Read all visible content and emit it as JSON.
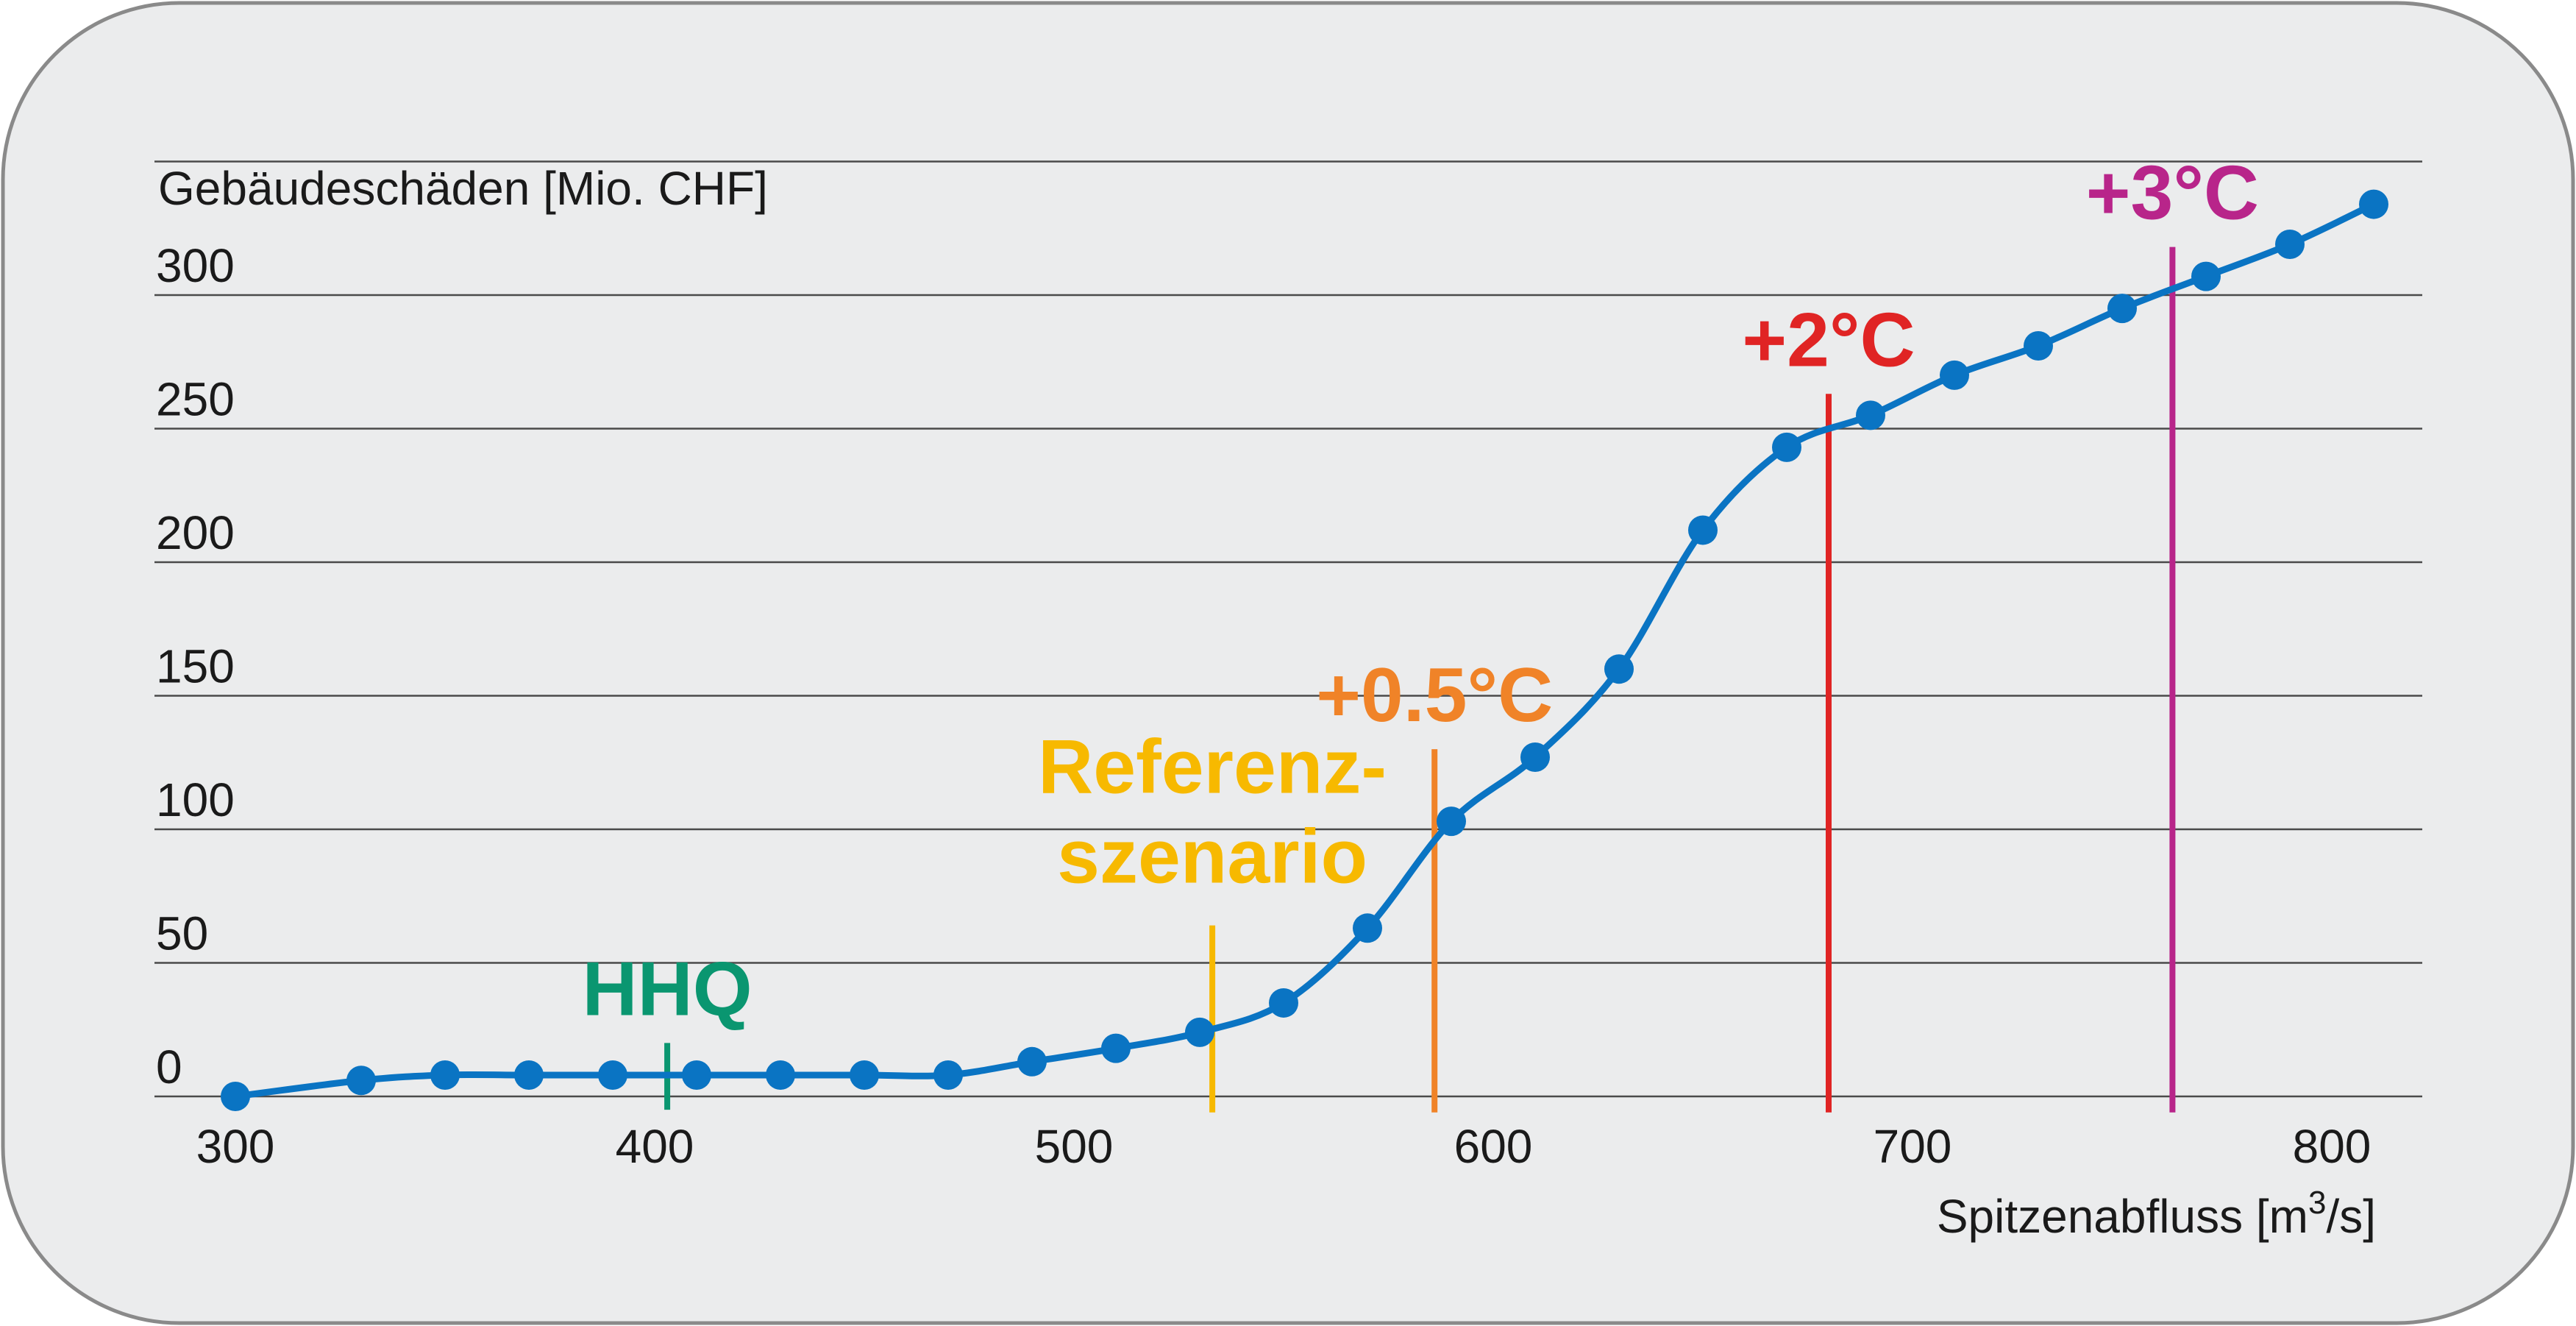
{
  "chart_data": {
    "type": "line",
    "ylabel": "Gebäudeschäden [Mio. CHF]",
    "xlabel": "Spitzenabfluss [m",
    "xlabel_sup": "3",
    "xlabel_end": "/s]",
    "xlim": [
      300,
      800
    ],
    "ylim": [
      0,
      350
    ],
    "xticks": [
      300,
      400,
      500,
      600,
      700,
      800
    ],
    "yticks": [
      0,
      50,
      100,
      150,
      200,
      250,
      300
    ],
    "grid": "horizontal",
    "series": [
      {
        "color": "#0a74c3",
        "points": [
          [
            300,
            0
          ],
          [
            330,
            6
          ],
          [
            350,
            8
          ],
          [
            370,
            8
          ],
          [
            390,
            8
          ],
          [
            410,
            8
          ],
          [
            430,
            8
          ],
          [
            450,
            8
          ],
          [
            470,
            8
          ],
          [
            490,
            13
          ],
          [
            510,
            18
          ],
          [
            530,
            24
          ],
          [
            550,
            35
          ],
          [
            570,
            63
          ],
          [
            590,
            103
          ],
          [
            610,
            127
          ],
          [
            630,
            160
          ],
          [
            650,
            212
          ],
          [
            670,
            243
          ],
          [
            690,
            255
          ],
          [
            710,
            270
          ],
          [
            730,
            281
          ],
          [
            750,
            295
          ],
          [
            770,
            307
          ],
          [
            790,
            319
          ],
          [
            810,
            334
          ]
        ]
      }
    ],
    "markers": [
      {
        "label": "HHQ",
        "x": 403,
        "color": "#0a9670",
        "line_top": 20
      },
      {
        "label": "Referenz-\nszenario",
        "label_line1": "Referenz-",
        "label_line2": "szenario",
        "x": 533,
        "color": "#f7b900",
        "line_top": 64
      },
      {
        "label": "+0.5°C",
        "x": 586,
        "color": "#f08328",
        "line_top": 130
      },
      {
        "label": "+2°C",
        "x": 680,
        "color": "#e02424",
        "line_top": 263
      },
      {
        "label": "+3°C",
        "x": 762,
        "color": "#b8258a",
        "line_top": 318
      }
    ]
  },
  "colors": {
    "background": "#ebeced",
    "frame": "#8a8a8a",
    "gridline": "#4a4a4a",
    "line": "#0a74c3"
  }
}
